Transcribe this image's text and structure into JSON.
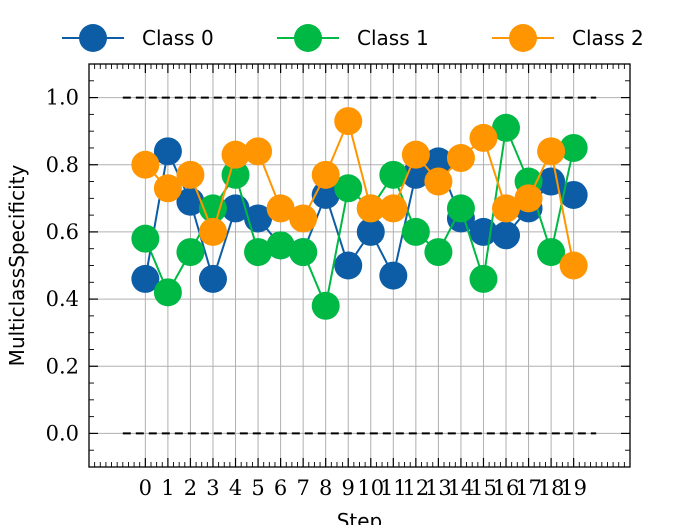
{
  "chart_data": {
    "type": "line",
    "xlabel": "Step",
    "ylabel": "MulticlassSpecificity",
    "x": [
      0,
      1,
      2,
      3,
      4,
      5,
      6,
      7,
      8,
      9,
      10,
      11,
      12,
      13,
      14,
      15,
      16,
      17,
      18,
      19
    ],
    "xticks": [
      "0",
      "1",
      "2",
      "3",
      "4",
      "5",
      "6",
      "7",
      "8",
      "9",
      "10",
      "11",
      "12",
      "13",
      "14",
      "15",
      "16",
      "17",
      "18",
      "19"
    ],
    "yticks": [
      "0.0",
      "0.2",
      "0.4",
      "0.6",
      "0.8",
      "1.0"
    ],
    "xlim": [
      -2.5,
      21.5
    ],
    "ylim": [
      -0.1,
      1.1
    ],
    "grid": true,
    "legend_position": "top, outside plot",
    "reference_lines": [
      0.0,
      1.0
    ],
    "series": [
      {
        "name": "Class 0",
        "color": "#0C5DA5",
        "values": [
          0.46,
          0.84,
          0.69,
          0.46,
          0.67,
          0.64,
          0.56,
          0.54,
          0.71,
          0.5,
          0.6,
          0.47,
          0.77,
          0.81,
          0.64,
          0.6,
          0.59,
          0.67,
          0.75,
          0.71
        ]
      },
      {
        "name": "Class 1",
        "color": "#00B945",
        "values": [
          0.58,
          0.42,
          0.54,
          0.67,
          0.77,
          0.54,
          0.56,
          0.54,
          0.38,
          0.73,
          0.67,
          0.77,
          0.6,
          0.54,
          0.67,
          0.46,
          0.91,
          0.75,
          0.54,
          0.85
        ]
      },
      {
        "name": "Class 2",
        "color": "#FF9500",
        "values": [
          0.8,
          0.73,
          0.77,
          0.6,
          0.83,
          0.84,
          0.67,
          0.64,
          0.77,
          0.93,
          0.67,
          0.67,
          0.83,
          0.75,
          0.82,
          0.88,
          0.67,
          0.7,
          0.84,
          0.5
        ]
      }
    ]
  }
}
